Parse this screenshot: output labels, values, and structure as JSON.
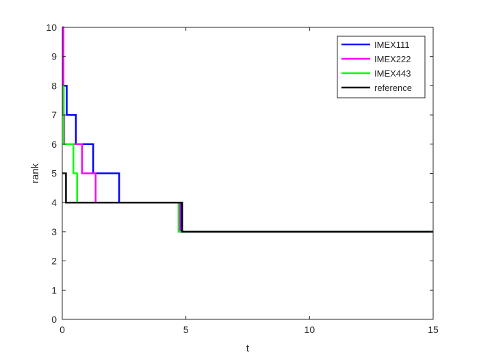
{
  "chart_data": {
    "type": "line",
    "xlabel": "t",
    "ylabel": "rank",
    "xlim": [
      0,
      15
    ],
    "ylim": [
      0,
      10
    ],
    "x_ticks": [
      0,
      5,
      10,
      15
    ],
    "y_ticks": [
      0,
      1,
      2,
      3,
      4,
      5,
      6,
      7,
      8,
      9,
      10
    ],
    "grid": false,
    "legend_position": "top-right",
    "line_style": "stairs",
    "series": [
      {
        "name": "IMEX111",
        "color": "#0000ff",
        "points": [
          [
            0,
            10
          ],
          [
            0.03,
            8
          ],
          [
            0.18,
            7
          ],
          [
            0.55,
            6
          ],
          [
            1.25,
            5
          ],
          [
            2.3,
            4
          ],
          [
            4.8,
            3
          ],
          [
            15,
            3
          ]
        ]
      },
      {
        "name": "IMEX222",
        "color": "#ff00ff",
        "points": [
          [
            0,
            10
          ],
          [
            0.05,
            7
          ],
          [
            0.08,
            6
          ],
          [
            0.8,
            5
          ],
          [
            1.35,
            4
          ],
          [
            4.75,
            3
          ],
          [
            15,
            3
          ]
        ]
      },
      {
        "name": "IMEX443",
        "color": "#00ff00",
        "points": [
          [
            0,
            8
          ],
          [
            0.06,
            6
          ],
          [
            0.45,
            5
          ],
          [
            0.6,
            4
          ],
          [
            4.7,
            3
          ],
          [
            15,
            3
          ]
        ]
      },
      {
        "name": "reference",
        "color": "#000000",
        "points": [
          [
            0,
            5
          ],
          [
            0.15,
            4
          ],
          [
            4.85,
            3
          ],
          [
            15,
            3
          ]
        ]
      }
    ]
  }
}
